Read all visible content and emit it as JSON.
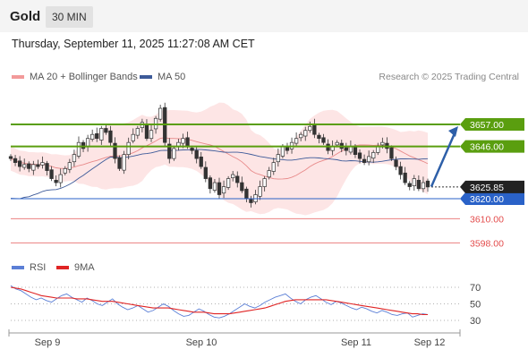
{
  "header": {
    "symbol": "Gold",
    "timeframe": "30 MIN"
  },
  "subheader": {
    "datetime": "Thursday, September 11, 2025 11:27:08 AM CET"
  },
  "legend": {
    "ma20_label": "MA 20 + Bollinger Bands",
    "ma50_label": "MA 50",
    "credit": "Research © 2025 Trading Central",
    "rsi_label": "RSI",
    "rsi_ma_label": "9MA"
  },
  "colors": {
    "green_level": "#5a9e0f",
    "blue_level": "#2a62c8",
    "red_level": "#e34b4b",
    "last_price_bg": "#222222",
    "band_fill": "#fde0e0",
    "ma20": "#e88a8a",
    "ma50": "#3d5a99",
    "arrow": "#2d5fa8",
    "rsi": "#5b7fd6",
    "rsi_ma": "#e02424"
  },
  "chart_data": [
    {
      "type": "candlestick",
      "title": "Gold",
      "x_labels": [
        "Sep 9",
        "Sep 10",
        "Sep 11",
        "Sep 12"
      ],
      "y_range": [
        3590,
        3680
      ],
      "levels": [
        {
          "label": "3657.00",
          "value": 3657.0,
          "kind": "resistance",
          "color": "green"
        },
        {
          "label": "3646.00",
          "value": 3646.0,
          "kind": "resistance",
          "color": "green"
        },
        {
          "label": "3620.00",
          "value": 3620.0,
          "kind": "support",
          "color": "blue"
        },
        {
          "label": "3610.00",
          "value": 3610.0,
          "kind": "support",
          "color": "red"
        },
        {
          "label": "3598.00",
          "value": 3598.0,
          "kind": "support",
          "color": "red"
        }
      ],
      "last_price": {
        "label": "3625.85",
        "value": 3625.85
      },
      "projection": {
        "from": 3626,
        "to": 3657,
        "direction": "up"
      },
      "closes": [
        3640,
        3638,
        3636,
        3637,
        3635,
        3637,
        3636,
        3638,
        3634,
        3630,
        3628,
        3632,
        3635,
        3638,
        3642,
        3648,
        3645,
        3650,
        3652,
        3650,
        3655,
        3653,
        3648,
        3640,
        3635,
        3642,
        3648,
        3652,
        3655,
        3658,
        3650,
        3654,
        3660,
        3665,
        3648,
        3640,
        3645,
        3648,
        3650,
        3646,
        3644,
        3640,
        3636,
        3630,
        3625,
        3628,
        3622,
        3626,
        3630,
        3632,
        3628,
        3624,
        3620,
        3618,
        3622,
        3626,
        3630,
        3634,
        3638,
        3642,
        3646,
        3644,
        3648,
        3650,
        3652,
        3654,
        3656,
        3652,
        3650,
        3648,
        3644,
        3646,
        3648,
        3645,
        3644,
        3646,
        3642,
        3640,
        3638,
        3641,
        3643,
        3646,
        3648,
        3645,
        3640,
        3636,
        3632,
        3628,
        3626,
        3630,
        3625,
        3628,
        3625.85
      ]
    },
    {
      "type": "line",
      "title": "RSI",
      "y_ticks": [
        30,
        50,
        70
      ],
      "y_range": [
        20,
        80
      ],
      "series": [
        {
          "name": "RSI",
          "values": [
            72,
            68,
            66,
            62,
            58,
            55,
            57,
            54,
            52,
            56,
            60,
            62,
            58,
            55,
            52,
            57,
            54,
            50,
            48,
            52,
            56,
            50,
            46,
            43,
            45,
            48,
            44,
            40,
            42,
            46,
            50,
            47,
            42,
            38,
            35,
            36,
            40,
            44,
            41,
            37,
            34,
            33,
            35,
            38,
            42,
            46,
            50,
            47,
            45,
            48,
            52,
            55,
            58,
            60,
            62,
            57,
            53,
            50,
            55,
            58,
            60,
            56,
            52,
            49,
            53,
            51,
            48,
            45,
            43,
            46,
            44,
            41,
            39,
            42,
            40,
            37,
            36,
            38,
            39,
            34,
            36,
            38,
            37
          ]
        },
        {
          "name": "9MA",
          "values": [
            70,
            69,
            68,
            66,
            64,
            62,
            60,
            59,
            58,
            57,
            57,
            57,
            57,
            56,
            56,
            56,
            55,
            54,
            53,
            53,
            53,
            52,
            51,
            50,
            49,
            48,
            47,
            46,
            45,
            45,
            45,
            45,
            44,
            43,
            42,
            41,
            40,
            40,
            40,
            39,
            38,
            38,
            38,
            38,
            39,
            40,
            41,
            42,
            43,
            44,
            45,
            47,
            49,
            51,
            53,
            54,
            55,
            55,
            55,
            55,
            55,
            55,
            55,
            54,
            53,
            52,
            51,
            50,
            49,
            48,
            47,
            46,
            45,
            44,
            43,
            42,
            41,
            40,
            39,
            38,
            38,
            37,
            37
          ]
        }
      ]
    }
  ]
}
